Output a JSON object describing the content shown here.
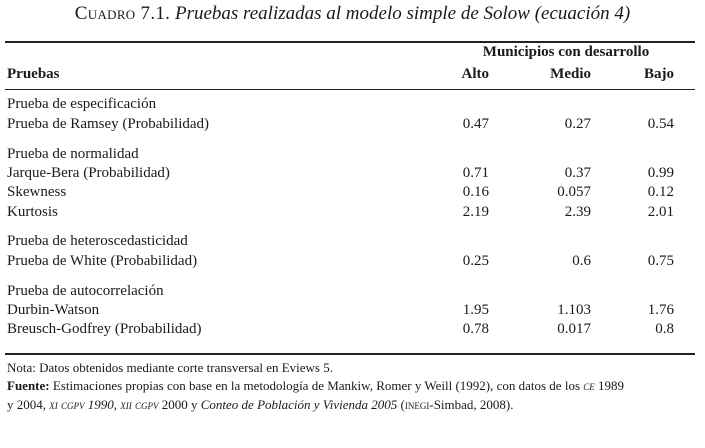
{
  "title": {
    "label": "Cuadro 7.1.",
    "caption": "Pruebas realizadas al modelo simple de Solow (ecuación 4)"
  },
  "header": {
    "group": "Municipios con desarrollo",
    "pruebas": "Pruebas",
    "alto": "Alto",
    "medio": "Medio",
    "bajo": "Bajo"
  },
  "rows": [
    {
      "name": "Prueba de especificación",
      "alto": "",
      "medio": "",
      "bajo": ""
    },
    {
      "name": "Prueba de Ramsey (Probabilidad)",
      "alto": "0.47",
      "medio": "0.27",
      "bajo": "0.54"
    },
    {
      "name": "Prueba de normalidad",
      "alto": "",
      "medio": "",
      "bajo": ""
    },
    {
      "name": "Jarque-Bera (Probabilidad)",
      "alto": "0.71",
      "medio": "0.37",
      "bajo": "0.99"
    },
    {
      "name": "Skewness",
      "alto": "0.16",
      "medio": "0.057",
      "bajo": "0.12"
    },
    {
      "name": "Kurtosis",
      "alto": "2.19",
      "medio": "2.39",
      "bajo": "2.01"
    },
    {
      "name": "Prueba de heteroscedasticidad",
      "alto": "",
      "medio": "",
      "bajo": ""
    },
    {
      "name": "Prueba de White (Probabilidad)",
      "alto": "0.25",
      "medio": "0.6",
      "bajo": "0.75"
    },
    {
      "name": "Prueba de autocorrelación",
      "alto": "",
      "medio": "",
      "bajo": ""
    },
    {
      "name": "Durbin-Watson",
      "alto": "1.95",
      "medio": "1.103",
      "bajo": "1.76"
    },
    {
      "name": "Breusch-Godfrey (Probabilidad)",
      "alto": "0.78",
      "medio": "0.017",
      "bajo": "0.8"
    }
  ],
  "notes": {
    "nota": "Nota: Datos obtenidos mediante corte transversal en Eviews 5.",
    "fuente_label": "Fuente:",
    "fuente_a": " Estimaciones propias con base en la metodología de Mankiw, Romer y Weill (1992), con datos de los ",
    "fuente_ce": "ce",
    "fuente_b": " 1989",
    "fuente_c": "y 2004, ",
    "fuente_xi": "xi cgpv 1990",
    "fuente_d": ", ",
    "fuente_xii": "xii cgpv",
    "fuente_e": " 2000 y ",
    "fuente_conteo": "Conteo de Población y Vivienda 2005",
    "fuente_f": " (",
    "fuente_inegi": "inegi",
    "fuente_g": "-Simbad, 2008)."
  }
}
